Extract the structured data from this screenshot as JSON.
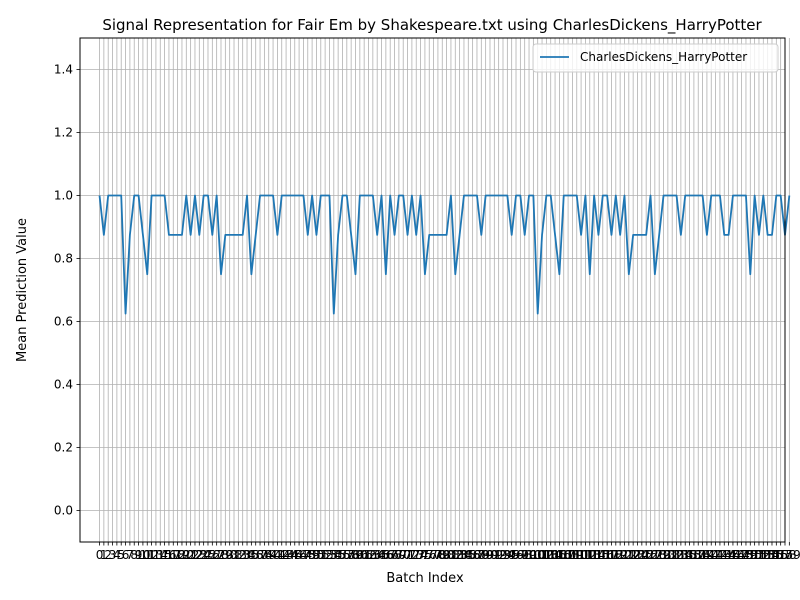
{
  "chart_data": {
    "type": "line",
    "title": "Signal Representation for Fair Em by Shakespeare.txt using CharlesDickens_HarryPotter",
    "xlabel": "Batch Index",
    "ylabel": "Mean Prediction Value",
    "xlim": [
      -4.5,
      158
    ],
    "ylim": [
      -0.1,
      1.5
    ],
    "yticks": [
      0.0,
      0.2,
      0.4,
      0.6,
      0.8,
      1.0,
      1.2,
      1.4
    ],
    "ytick_labels": [
      "0.0",
      "0.2",
      "0.4",
      "0.6",
      "0.8",
      "1.0",
      "1.2",
      "1.4"
    ],
    "grid": true,
    "legend_position": "top-right",
    "series": [
      {
        "name": "CharlesDickens_HarryPotter",
        "color": "#1f77b4",
        "values": [
          1.0,
          0.875,
          1.0,
          1.0,
          1.0,
          1.0,
          0.625,
          0.875,
          1.0,
          1.0,
          0.875,
          0.75,
          1.0,
          1.0,
          1.0,
          1.0,
          0.875,
          0.875,
          0.875,
          0.875,
          1.0,
          0.875,
          1.0,
          0.875,
          1.0,
          1.0,
          0.875,
          1.0,
          0.75,
          0.875,
          0.875,
          0.875,
          0.875,
          0.875,
          1.0,
          0.75,
          0.875,
          1.0,
          1.0,
          1.0,
          1.0,
          0.875,
          1.0,
          1.0,
          1.0,
          1.0,
          1.0,
          1.0,
          0.875,
          1.0,
          0.875,
          1.0,
          1.0,
          1.0,
          0.625,
          0.875,
          1.0,
          1.0,
          0.875,
          0.75,
          1.0,
          1.0,
          1.0,
          1.0,
          0.875,
          1.0,
          0.75,
          1.0,
          0.875,
          1.0,
          1.0,
          0.875,
          1.0,
          0.875,
          1.0,
          0.75,
          0.875,
          0.875,
          0.875,
          0.875,
          0.875,
          1.0,
          0.75,
          0.875,
          1.0,
          1.0,
          1.0,
          1.0,
          0.875,
          1.0,
          1.0,
          1.0,
          1.0,
          1.0,
          1.0,
          0.875,
          1.0,
          1.0,
          0.875,
          1.0,
          1.0,
          0.625,
          0.875,
          1.0,
          1.0,
          0.875,
          0.75,
          1.0,
          1.0,
          1.0,
          1.0,
          0.875,
          1.0,
          0.75,
          1.0,
          0.875,
          1.0,
          1.0,
          0.875,
          1.0,
          0.875,
          1.0,
          0.75,
          0.875,
          0.875,
          0.875,
          0.875,
          1.0,
          0.75,
          0.875,
          1.0,
          1.0,
          1.0,
          1.0,
          0.875,
          1.0,
          1.0,
          1.0,
          1.0,
          1.0,
          0.875,
          1.0,
          1.0,
          1.0,
          0.875,
          0.875,
          1.0,
          1.0,
          1.0,
          1.0,
          0.75,
          1.0,
          0.875,
          1.0,
          0.875,
          0.875,
          1.0,
          1.0,
          0.875,
          1.0
        ]
      }
    ]
  }
}
